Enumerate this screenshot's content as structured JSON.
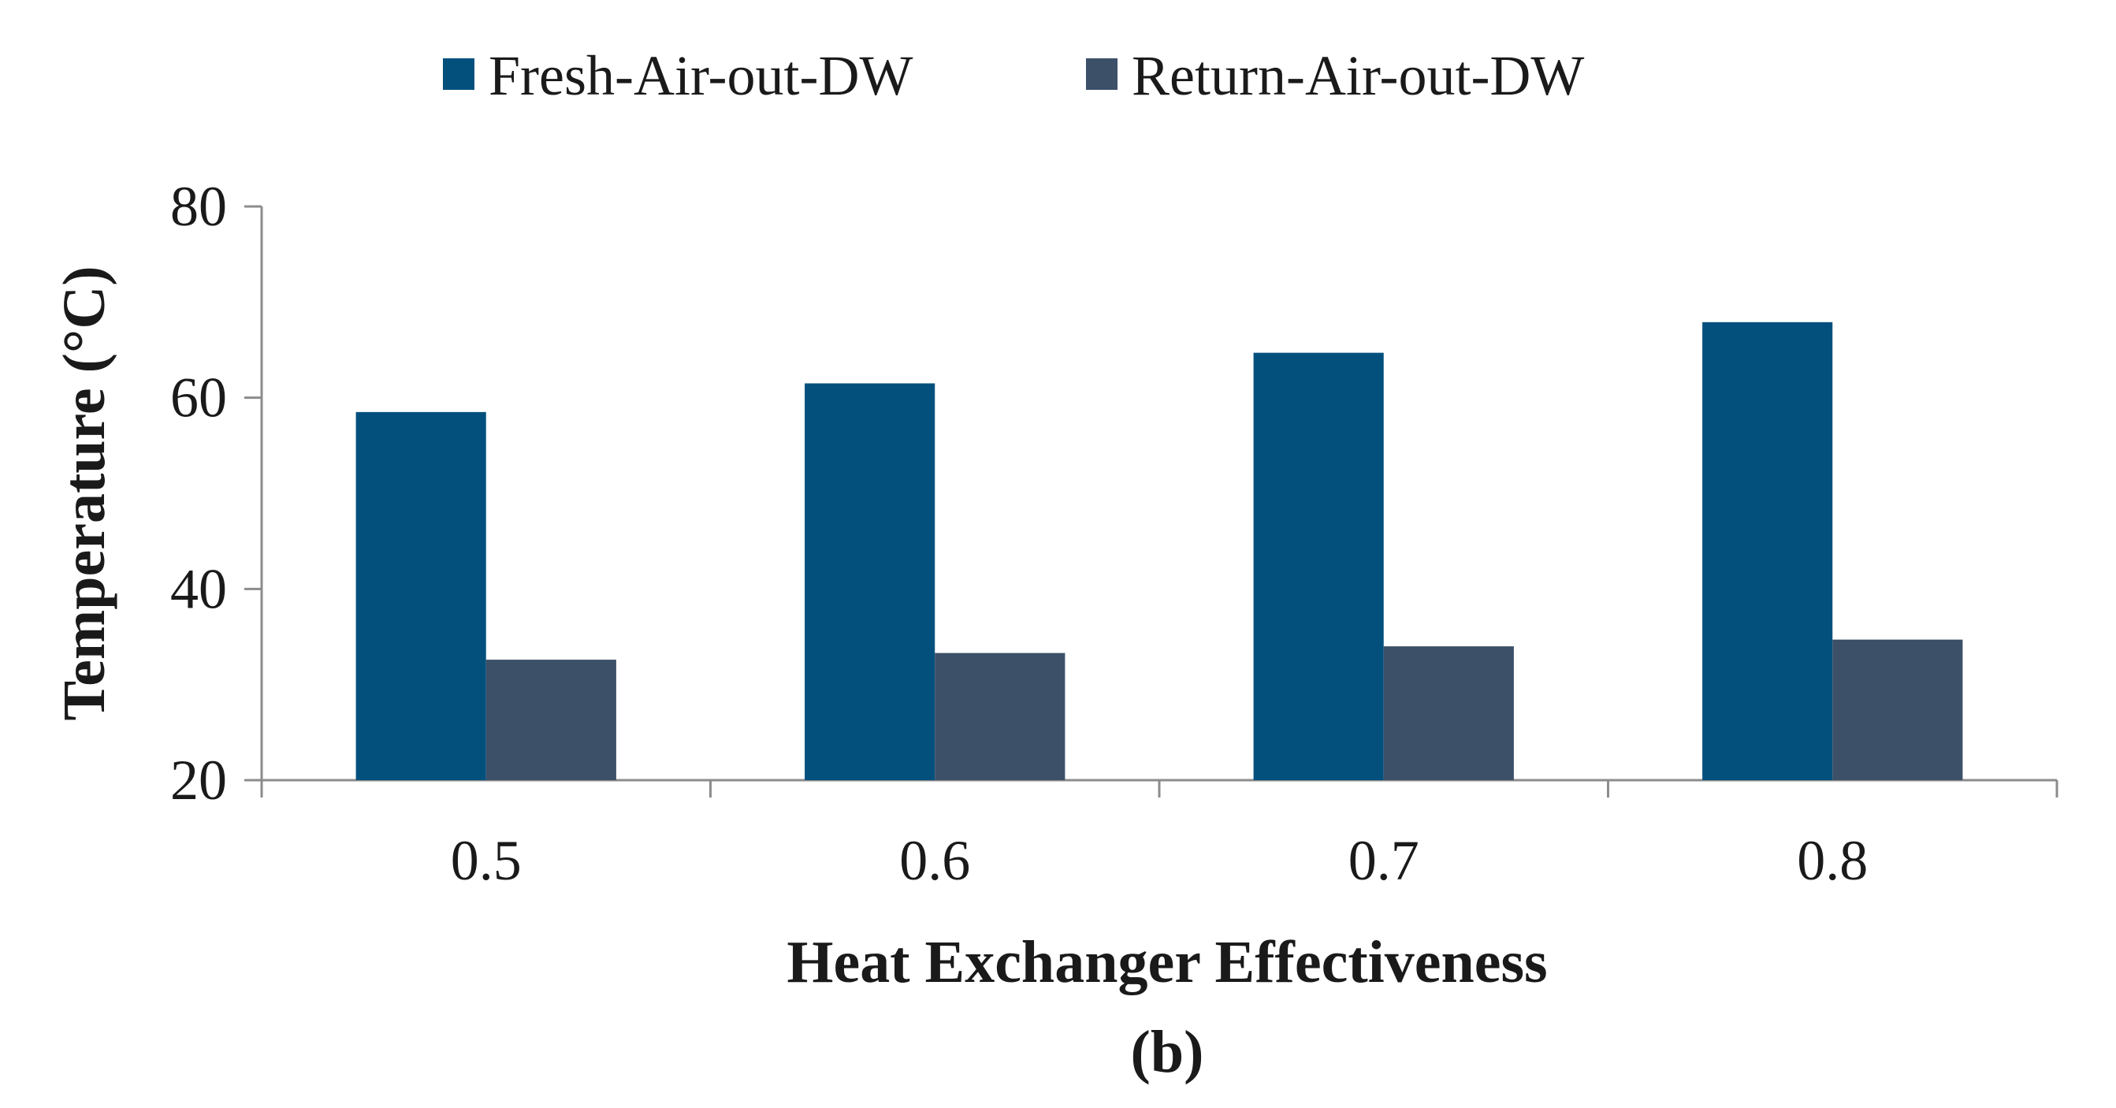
{
  "chart_data": {
    "type": "bar",
    "title": "",
    "xlabel": "Heat Exchanger Effectiveness",
    "ylabel": "Temperature (°C)",
    "panel_label": "(b)",
    "categories": [
      "0.5",
      "0.6",
      "0.7",
      "0.8"
    ],
    "ylim": [
      20,
      80
    ],
    "yticks": [
      "20",
      "40",
      "60",
      "80"
    ],
    "grid": false,
    "legend_position": "top-center",
    "series": [
      {
        "name": "Fresh-Air-out-DW",
        "color": "#03507d",
        "values": [
          58.5,
          61.5,
          64.7,
          67.9
        ]
      },
      {
        "name": "Return-Air-out-DW",
        "color": "#3c5068",
        "values": [
          32.6,
          33.3,
          34.0,
          34.7
        ]
      }
    ]
  }
}
